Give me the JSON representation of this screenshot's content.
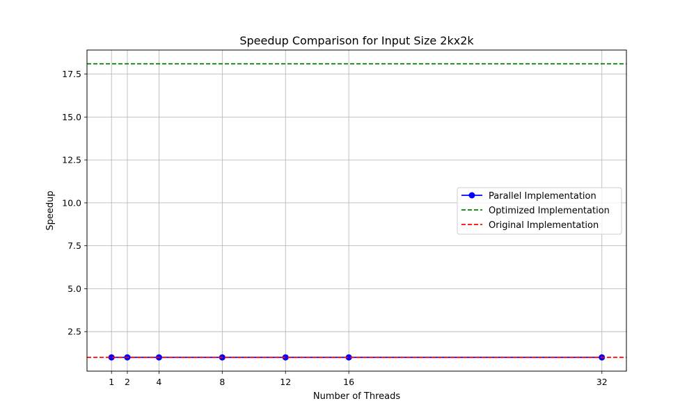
{
  "chart_data": {
    "type": "line",
    "title": "Speedup Comparison for Input Size 2kx2k",
    "xlabel": "Number of Threads",
    "ylabel": "Speedup",
    "x": [
      1,
      2,
      4,
      8,
      12,
      16,
      32
    ],
    "xticks": [
      1,
      2,
      4,
      8,
      12,
      16,
      32
    ],
    "xlim": [
      -0.55,
      33.55
    ],
    "ylim": [
      0.2,
      18.9
    ],
    "yticks": [
      2.5,
      5.0,
      7.5,
      10.0,
      12.5,
      15.0,
      17.5
    ],
    "ytick_labels": [
      "2.5",
      "5.0",
      "7.5",
      "10.0",
      "12.5",
      "15.0",
      "17.5"
    ],
    "grid": true,
    "legend_position": "center-right",
    "series": [
      {
        "name": "Parallel Implementation",
        "style": "solid-marker",
        "color": "#0000ff",
        "values": [
          1.0,
          1.0,
          1.0,
          1.0,
          1.0,
          1.0,
          1.0
        ]
      },
      {
        "name": "Optimized Implementation",
        "style": "dashed-hline",
        "color": "#008000",
        "value": 18.1
      },
      {
        "name": "Original Implementation",
        "style": "dashed-hline",
        "color": "#ff0000",
        "value": 1.0
      }
    ]
  }
}
